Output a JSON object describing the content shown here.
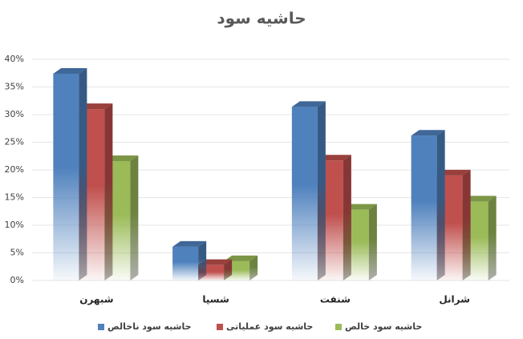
{
  "chart_data": {
    "type": "bar3d",
    "title": "حاشیه سود",
    "categories": [
      "شبهرن",
      "شسپا",
      "شنفت",
      "شرانل"
    ],
    "series": [
      {
        "name": "حاشیه سود ناخالص",
        "color": "#4f81bd",
        "values": [
          37.4,
          6.1,
          31.4,
          26.2
        ]
      },
      {
        "name": "حاشیه سود عملیاتی",
        "color": "#c0504d",
        "values": [
          31.0,
          2.8,
          21.7,
          19.0
        ]
      },
      {
        "name": "حاشیه سود خالص",
        "color": "#9bbb59",
        "values": [
          21.6,
          3.5,
          12.8,
          14.3
        ]
      }
    ],
    "ylim": [
      0,
      40
    ],
    "yticks": [
      {
        "value": 0,
        "label": "0%"
      },
      {
        "value": 5,
        "label": "5%"
      },
      {
        "value": 10,
        "label": "10%"
      },
      {
        "value": 15,
        "label": "15%"
      },
      {
        "value": 20,
        "label": "20%"
      },
      {
        "value": 25,
        "label": "25%"
      },
      {
        "value": 30,
        "label": "30%"
      },
      {
        "value": 35,
        "label": "35%"
      },
      {
        "value": 40,
        "label": "40%"
      }
    ],
    "grid": true,
    "legend": "bottom"
  }
}
